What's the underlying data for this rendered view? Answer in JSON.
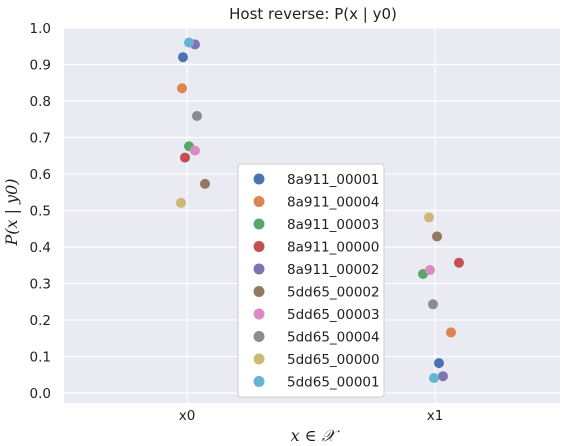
{
  "chart_data": {
    "type": "scatter",
    "title": "Host reverse: P(x | y0)",
    "xlabel": "x ∈ 𝒳",
    "ylabel": "P(x | y0)",
    "categories": [
      "x0",
      "x1"
    ],
    "ylim": [
      0.0,
      1.0
    ],
    "yticks": [
      "0.0",
      "0.1",
      "0.2",
      "0.3",
      "0.4",
      "0.5",
      "0.6",
      "0.7",
      "0.8",
      "0.9",
      "1.0"
    ],
    "grid": true,
    "legend_position": "center",
    "series": [
      {
        "name": "8a911_00001",
        "color": "#4c72b0",
        "values": [
          0.92,
          0.082
        ]
      },
      {
        "name": "8a911_00004",
        "color": "#dd8452",
        "values": [
          0.835,
          0.166
        ]
      },
      {
        "name": "8a911_00003",
        "color": "#55a868",
        "values": [
          0.676,
          0.326
        ]
      },
      {
        "name": "8a911_00000",
        "color": "#c44e52",
        "values": [
          0.645,
          0.357
        ]
      },
      {
        "name": "8a911_00002",
        "color": "#8172b3",
        "values": [
          0.955,
          0.046
        ]
      },
      {
        "name": "5dd65_00002",
        "color": "#937860",
        "values": [
          0.573,
          0.429
        ]
      },
      {
        "name": "5dd65_00003",
        "color": "#da8bc3",
        "values": [
          0.664,
          0.337
        ]
      },
      {
        "name": "5dd65_00004",
        "color": "#8c8c8c",
        "values": [
          0.759,
          0.243
        ]
      },
      {
        "name": "5dd65_00000",
        "color": "#ccb974",
        "values": [
          0.521,
          0.481
        ]
      },
      {
        "name": "5dd65_00001",
        "color": "#64b5cd",
        "values": [
          0.96,
          0.041
        ]
      }
    ]
  }
}
